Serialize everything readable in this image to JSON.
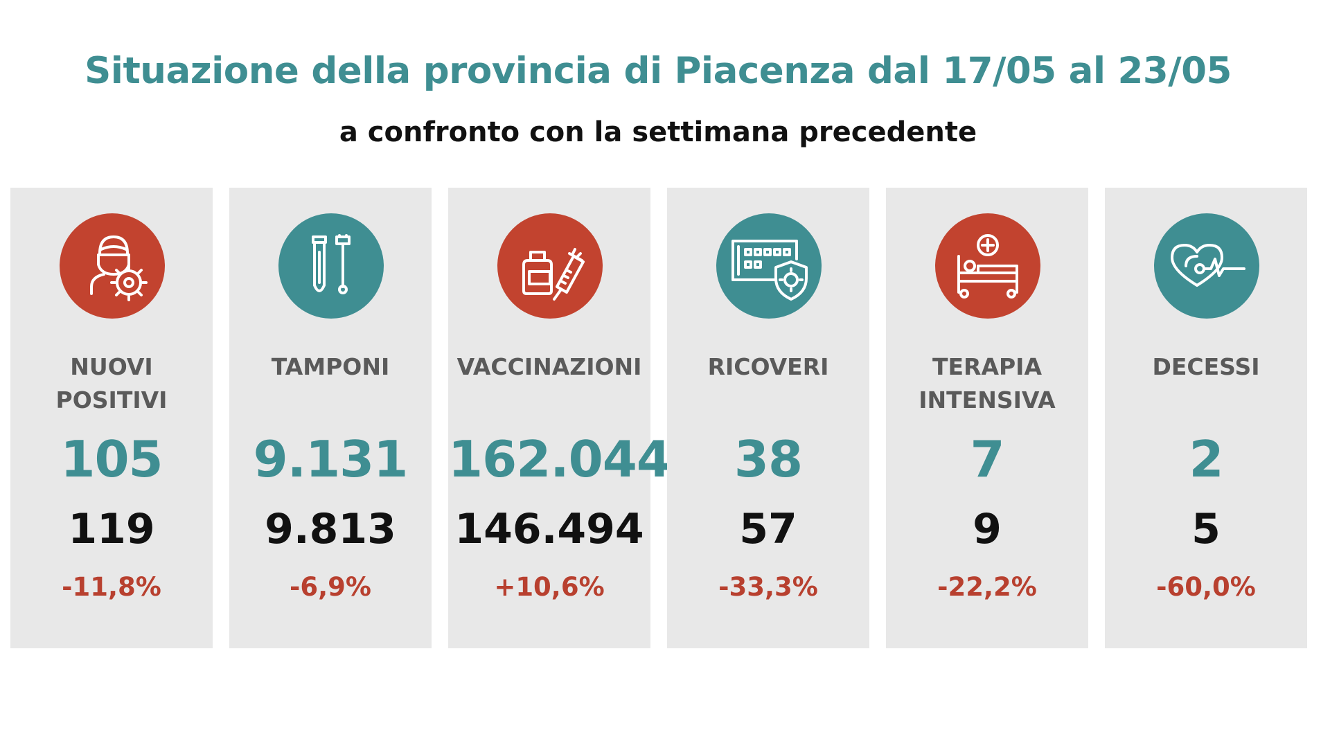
{
  "header": {
    "title": "Situazione della provincia di Piacenza dal 17/05 al 23/05",
    "subtitle": "a confronto con la settimana precedente"
  },
  "colors": {
    "accent_teal": "#3f8e92",
    "accent_red": "#c2432f",
    "card_bg": "#e8e8e8",
    "change_red": "#b8402f"
  },
  "cards": [
    {
      "icon": "masked-person-virus-icon",
      "icon_color": "#c2432f",
      "label": "NUOVI\nPOSITIVI",
      "current": "105",
      "previous": "119",
      "change": "-11,8%"
    },
    {
      "icon": "test-tubes-icon",
      "icon_color": "#3f8e92",
      "label": "TAMPONI",
      "current": "9.131",
      "previous": "9.813",
      "change": "-6,9%"
    },
    {
      "icon": "vaccine-vial-syringe-icon",
      "icon_color": "#c2432f",
      "label": "VACCINAZIONI",
      "current": "162.044",
      "previous": "146.494",
      "change": "+10,6%"
    },
    {
      "icon": "hospital-shield-virus-icon",
      "icon_color": "#3f8e92",
      "label": "RICOVERI",
      "current": "38",
      "previous": "57",
      "change": "-33,3%"
    },
    {
      "icon": "hospital-bed-icon",
      "icon_color": "#c2432f",
      "label": "TERAPIA\nINTENSIVA",
      "current": "7",
      "previous": "9",
      "change": "-22,2%"
    },
    {
      "icon": "heart-pulse-icon",
      "icon_color": "#3f8e92",
      "label": "DECESSI",
      "current": "2",
      "previous": "5",
      "change": "-60,0%"
    }
  ]
}
